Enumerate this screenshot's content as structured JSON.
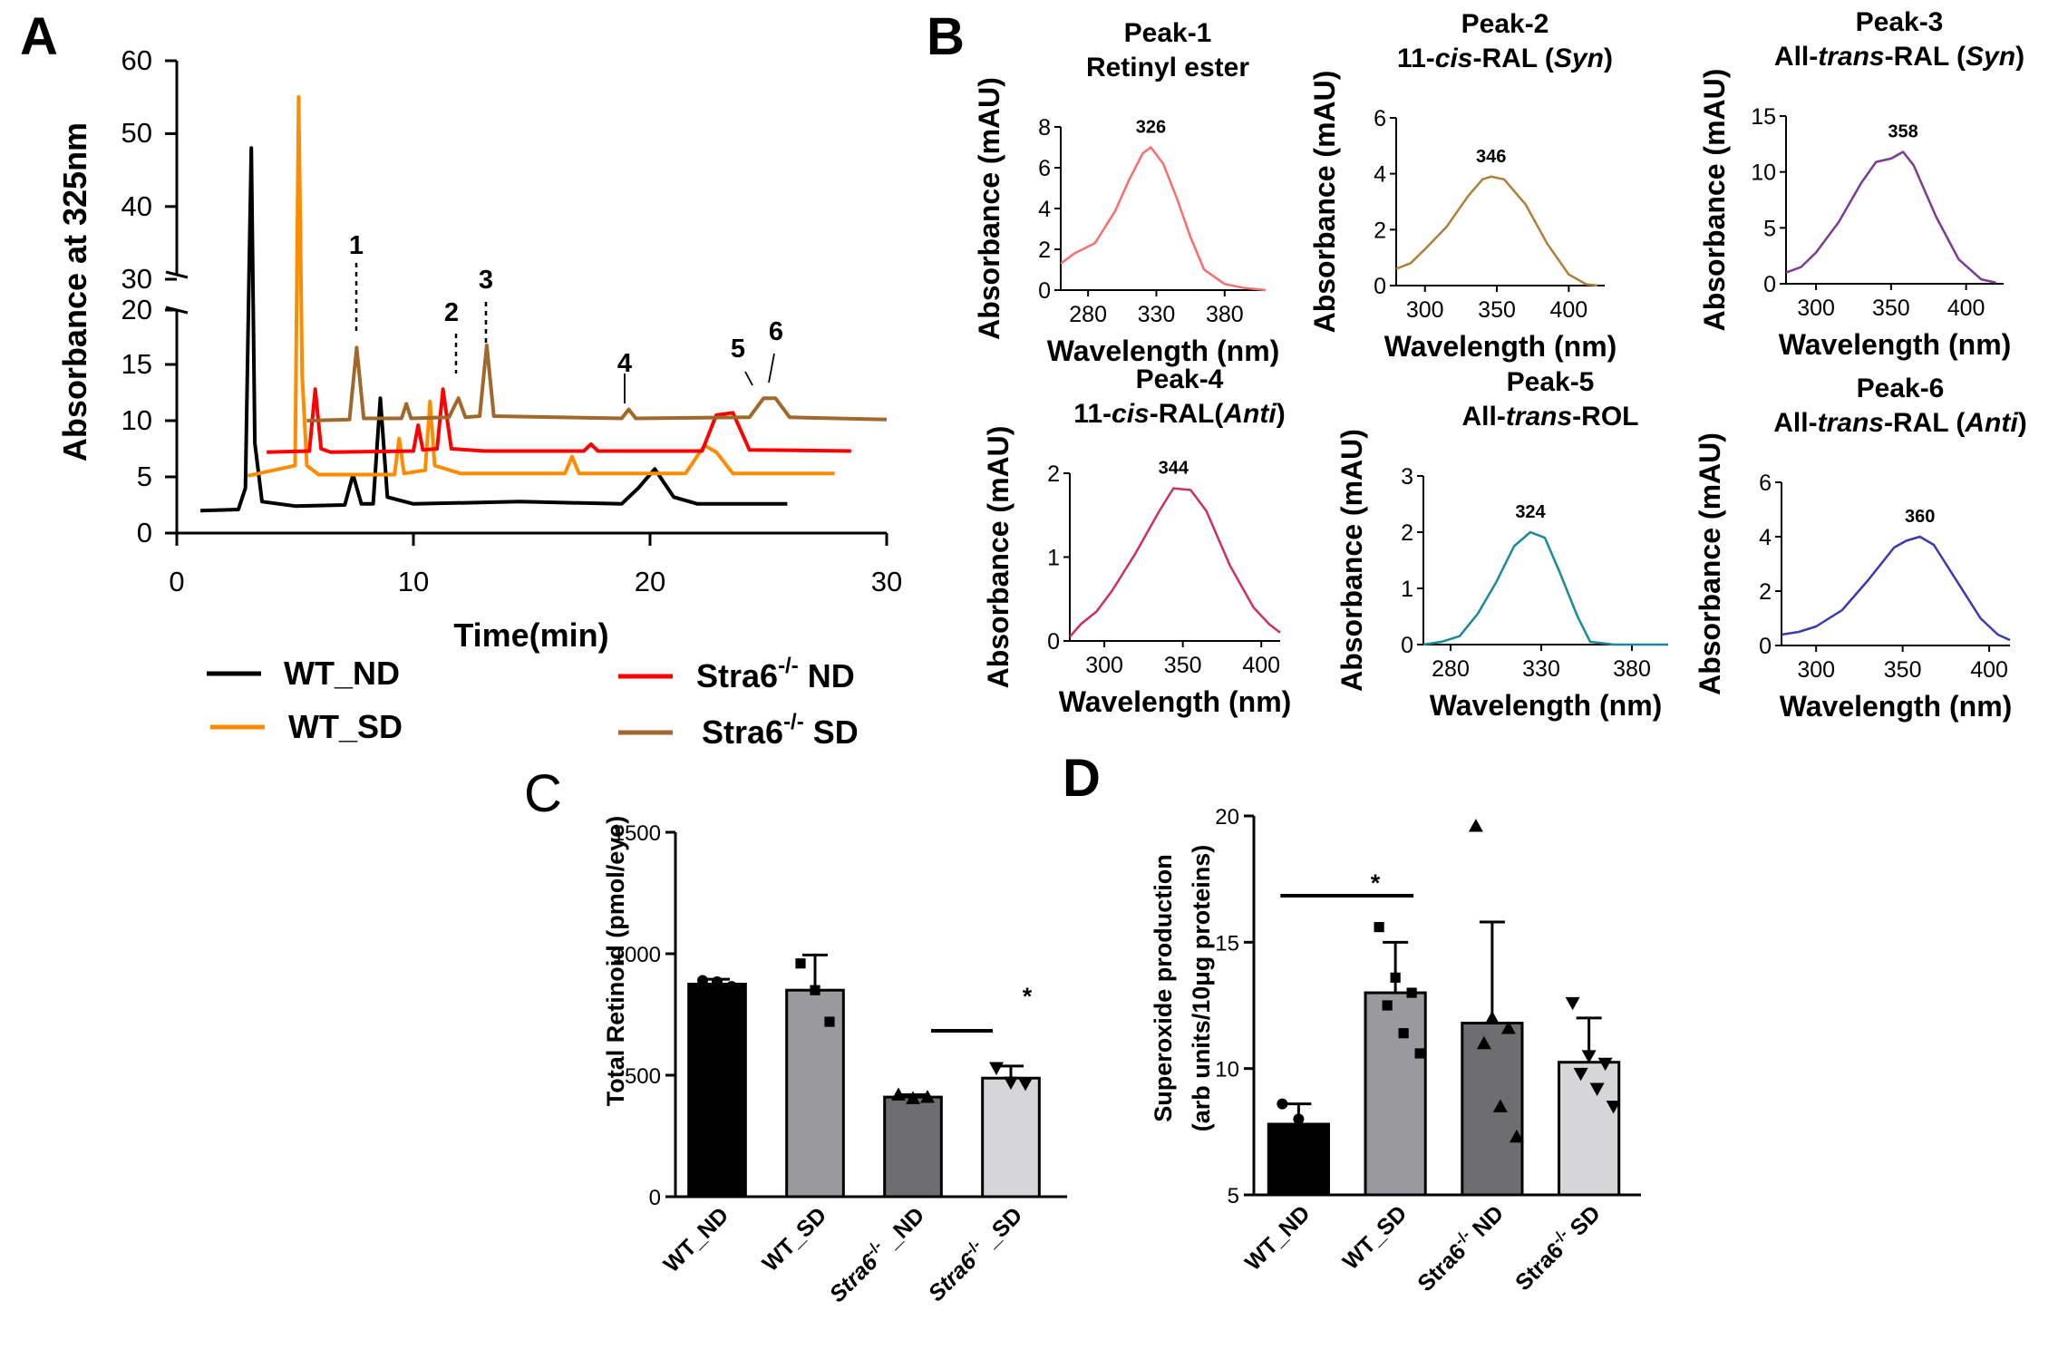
{
  "panels": {
    "A": "A",
    "B": "B",
    "C": "C",
    "D": "D"
  },
  "panel_a": {
    "ylabel": "Absorbance at 325nm",
    "xlabel": "Time(min)",
    "x_ticks": [
      "0",
      "10",
      "20",
      "30"
    ],
    "y_ticks_lower": [
      "0",
      "5",
      "10",
      "15",
      "20"
    ],
    "y_ticks_upper": [
      "30",
      "40",
      "50",
      "60"
    ],
    "peak_labels": [
      "1",
      "2",
      "3",
      "4",
      "5",
      "6"
    ],
    "legend": [
      {
        "name": "WT_ND",
        "color": "#000000"
      },
      {
        "name": "Stra6-/- ND",
        "base": "Stra6",
        "sup": "-/-",
        "rest": " ND",
        "color": "#ff0000"
      },
      {
        "name": "WT_SD",
        "color": "#ff8c00"
      },
      {
        "name": "Stra6-/- SD",
        "base": "Stra6",
        "sup": "-/-",
        "rest": " SD",
        "color": "#a0682a"
      }
    ]
  },
  "panel_b": {
    "xlabel": "Wavelength (nm)",
    "ylabel": "Absorbance (mAU)",
    "spectra": [
      {
        "line1": "Peak-1",
        "line2": "Retinyl ester",
        "max_label": "326",
        "x_ticks": [
          "280",
          "330",
          "380"
        ],
        "y_ticks": [
          "0",
          "2",
          "4",
          "6",
          "8"
        ],
        "color": "#f76e6e"
      },
      {
        "line1": "Peak-2",
        "line2": "11-cis-RAL (Syn)",
        "max_label": "346",
        "x_ticks": [
          "300",
          "350",
          "400"
        ],
        "y_ticks": [
          "0",
          "2",
          "4",
          "6"
        ],
        "color": "#b07f37"
      },
      {
        "line1": "Peak-3",
        "line2": "All-trans-RAL (Syn)",
        "max_label": "358",
        "x_ticks": [
          "300",
          "350",
          "400"
        ],
        "y_ticks": [
          "0",
          "5",
          "10",
          "15"
        ],
        "color": "#7b3b94"
      },
      {
        "line1": "Peak-4",
        "line2": "11-cis-RAL(Anti)",
        "max_label": "344",
        "x_ticks": [
          "300",
          "350",
          "400"
        ],
        "y_ticks": [
          "0",
          "1",
          "2"
        ],
        "color": "#cc2e67"
      },
      {
        "line1": "Peak-5",
        "line2": "All-trans-ROL",
        "max_label": "324",
        "x_ticks": [
          "280",
          "330",
          "380"
        ],
        "y_ticks": [
          "0",
          "1",
          "2",
          "3"
        ],
        "color": "#1a8a9a"
      },
      {
        "line1": "Peak-6",
        "line2": "All-trans-RAL (Anti)",
        "max_label": "360",
        "x_ticks": [
          "300",
          "350",
          "400"
        ],
        "y_ticks": [
          "0",
          "2",
          "4",
          "6"
        ],
        "color": "#3a3ab0"
      }
    ]
  },
  "panel_c": {
    "ylabel": "Total Retinoid (pmol/eye)",
    "y_ticks": [
      "0",
      "500",
      "1000",
      "1500"
    ],
    "sig_label": "*",
    "categories": [
      "WT_ND",
      "WT_SD",
      "Stra6-/- _ND",
      "Stra6-/- _SD"
    ]
  },
  "panel_d": {
    "ylabel_line1": "Superoxide production",
    "ylabel_line2": "(arb units/10μg proteins)",
    "y_ticks": [
      "5",
      "10",
      "15",
      "20"
    ],
    "sig_label": "*",
    "categories": [
      "WT_ND",
      "WT_SD",
      "Stra6-/- ND",
      "Stra6-/- SD"
    ]
  },
  "chart_data": [
    {
      "type": "line",
      "title": "",
      "xlabel": "Time(min)",
      "ylabel": "Absorbance at 325nm",
      "xlim": [
        0,
        30
      ],
      "ylim": [
        0,
        60
      ],
      "axis_break": [
        20,
        30
      ],
      "series": [
        {
          "name": "WT_ND",
          "color": "#000000",
          "x": [
            1,
            2.6,
            2.9,
            3.05,
            3.15,
            3.3,
            3.6,
            5,
            7.1,
            7.45,
            7.8,
            8.3,
            8.6,
            8.9,
            10,
            14.5,
            18.8,
            19.5,
            20.2,
            21,
            22,
            25.8
          ],
          "y": [
            2,
            2.1,
            4,
            30,
            48,
            8,
            2.8,
            2.4,
            2.5,
            5.2,
            2.6,
            2.6,
            12,
            3.2,
            2.6,
            2.8,
            2.6,
            4,
            5.7,
            3.2,
            2.6,
            2.6
          ]
        },
        {
          "name": "WT_SD",
          "color": "#ff8c00",
          "x": [
            3,
            5.0,
            5.15,
            5.3,
            5.5,
            6,
            9.2,
            9.4,
            9.6,
            10.5,
            10.7,
            10.9,
            12,
            16.4,
            16.7,
            17,
            21.5,
            22.3,
            22.8,
            23.5,
            27.8
          ],
          "y": [
            5.1,
            6,
            55,
            14,
            6,
            5.2,
            5.2,
            8.4,
            5.3,
            5.6,
            11.7,
            6,
            5.3,
            5.3,
            6.8,
            5.3,
            5.3,
            7.8,
            7.2,
            5.3,
            5.3
          ]
        },
        {
          "name": "Stra6-/- ND",
          "color": "#ff0000",
          "x": [
            3.8,
            5.6,
            5.85,
            6.1,
            6.5,
            10.0,
            10.2,
            10.4,
            11.0,
            11.25,
            11.6,
            13,
            17.2,
            17.5,
            17.8,
            22.2,
            22.8,
            23.5,
            24.2,
            28.5
          ],
          "y": [
            7.2,
            7.3,
            12.8,
            7.5,
            7.2,
            7.3,
            9.6,
            7.4,
            7.5,
            12.8,
            7.5,
            7.3,
            7.3,
            7.9,
            7.3,
            7.3,
            10.5,
            10.7,
            7.4,
            7.3
          ]
        },
        {
          "name": "Stra6-/- SD",
          "color": "#a0682a",
          "x": [
            5.5,
            7.3,
            7.6,
            7.9,
            9.5,
            9.7,
            9.9,
            11.5,
            11.9,
            12.2,
            12.8,
            13.1,
            13.4,
            18.8,
            19.1,
            19.4,
            24.2,
            24.8,
            25.3,
            25.9,
            30
          ],
          "y": [
            10,
            10.1,
            16.5,
            10.2,
            10.2,
            11.5,
            10.2,
            10.3,
            12,
            10.3,
            10.4,
            16.7,
            10.4,
            10.2,
            11,
            10.2,
            10.3,
            12,
            12,
            10.3,
            10.1
          ]
        }
      ]
    },
    {
      "type": "line",
      "title": "Peak-1 Retinyl ester",
      "xlabel": "Wavelength (nm)",
      "ylabel": "Absorbance (mAU)",
      "xlim": [
        260,
        410
      ],
      "ylim": [
        0,
        8
      ],
      "series": [
        {
          "name": "Peak-1",
          "x": [
            260,
            270,
            285,
            300,
            310,
            320,
            326,
            335,
            345,
            355,
            365,
            380,
            395,
            410
          ],
          "y": [
            1.3,
            1.8,
            2.3,
            3.9,
            5.4,
            6.7,
            7.0,
            6.2,
            4.5,
            2.6,
            1.0,
            0.3,
            0.1,
            0.0
          ]
        }
      ]
    },
    {
      "type": "line",
      "title": "Peak-2 11-cis-RAL (Syn)",
      "xlabel": "Wavelength (nm)",
      "ylabel": "Absorbance (mAU)",
      "xlim": [
        280,
        425
      ],
      "ylim": [
        0,
        6
      ],
      "series": [
        {
          "name": "Peak-2",
          "x": [
            280,
            290,
            300,
            315,
            330,
            340,
            346,
            355,
            370,
            385,
            400,
            412,
            420
          ],
          "y": [
            0.6,
            0.8,
            1.3,
            2.1,
            3.2,
            3.8,
            3.9,
            3.8,
            2.9,
            1.5,
            0.4,
            0.05,
            0.0
          ]
        }
      ]
    },
    {
      "type": "line",
      "title": "Peak-3 All-trans-RAL (Syn)",
      "xlabel": "Wavelength (nm)",
      "ylabel": "Absorbance (mAU)",
      "xlim": [
        280,
        425
      ],
      "ylim": [
        0,
        15
      ],
      "series": [
        {
          "name": "Peak-3",
          "x": [
            280,
            290,
            300,
            315,
            330,
            340,
            350,
            358,
            365,
            380,
            395,
            410,
            420
          ],
          "y": [
            1.0,
            1.5,
            2.8,
            5.5,
            9.0,
            10.9,
            11.2,
            11.8,
            10.6,
            6.0,
            2.2,
            0.4,
            0.1
          ]
        }
      ]
    },
    {
      "type": "line",
      "title": "Peak-4 11-cis-RAL(Anti)",
      "xlabel": "Wavelength (nm)",
      "ylabel": "Absorbance (mAU)",
      "xlim": [
        278,
        412
      ],
      "ylim": [
        0,
        2
      ],
      "series": [
        {
          "name": "Peak-4",
          "x": [
            278,
            285,
            295,
            305,
            320,
            335,
            344,
            355,
            365,
            380,
            395,
            405,
            412
          ],
          "y": [
            0.05,
            0.2,
            0.35,
            0.6,
            1.05,
            1.55,
            1.82,
            1.8,
            1.55,
            0.9,
            0.4,
            0.2,
            0.1
          ]
        }
      ]
    },
    {
      "type": "line",
      "title": "Peak-5 All-trans-ROL",
      "xlabel": "Wavelength (nm)",
      "ylabel": "Absorbance (mAU)",
      "xlim": [
        265,
        400
      ],
      "ylim": [
        0,
        3
      ],
      "series": [
        {
          "name": "Peak-5",
          "x": [
            265,
            275,
            285,
            295,
            305,
            315,
            324,
            332,
            340,
            350,
            357,
            370,
            385,
            400
          ],
          "y": [
            0.0,
            0.05,
            0.15,
            0.55,
            1.1,
            1.75,
            2.0,
            1.9,
            1.3,
            0.5,
            0.05,
            0.0,
            0.0,
            0.0
          ]
        }
      ]
    },
    {
      "type": "line",
      "title": "Peak-6 All-trans-RAL (Anti)",
      "xlabel": "Wavelength (nm)",
      "ylabel": "Absorbance (mAU)",
      "xlim": [
        280,
        412
      ],
      "ylim": [
        0,
        6
      ],
      "series": [
        {
          "name": "Peak-6",
          "x": [
            280,
            290,
            300,
            315,
            330,
            345,
            352,
            360,
            368,
            380,
            395,
            405,
            412
          ],
          "y": [
            0.4,
            0.5,
            0.7,
            1.3,
            2.4,
            3.6,
            3.85,
            4.0,
            3.7,
            2.5,
            1.0,
            0.4,
            0.2
          ]
        }
      ]
    },
    {
      "type": "bar",
      "title": "",
      "ylabel": "Total Retinoid (pmol/eye)",
      "ylim": [
        0,
        1500
      ],
      "categories": [
        "WT_ND",
        "WT_SD",
        "Stra6-/- _ND",
        "Stra6-/- _SD"
      ],
      "values": [
        875,
        850,
        410,
        488
      ],
      "errors": [
        20,
        145,
        10,
        50
      ],
      "colors": [
        "#000000",
        "#9a9a9e",
        "#6e6e70",
        "#d6d6d8"
      ],
      "points": [
        [
          890,
          885,
          865
        ],
        [
          960,
          850,
          720
        ],
        [
          420,
          405,
          410
        ],
        [
          530,
          470,
          465
        ]
      ],
      "significance": [
        {
          "between": [
            2,
            3
          ],
          "label": "*"
        }
      ]
    },
    {
      "type": "bar",
      "title": "",
      "ylabel": "Superoxide production (arb units/10μg proteins)",
      "ylim": [
        5,
        20
      ],
      "categories": [
        "WT_ND",
        "WT_SD",
        "Stra6-/- ND",
        "Stra6-/- SD"
      ],
      "values": [
        7.8,
        13.0,
        11.8,
        10.25
      ],
      "errors": [
        0.8,
        2.0,
        4.0,
        1.75
      ],
      "colors": [
        "#000000",
        "#9a9a9e",
        "#6e6e70",
        "#d6d6d8"
      ],
      "points": [
        [
          8.6,
          8.0,
          7.6,
          7.4
        ],
        [
          15.6,
          13.6,
          13.0,
          12.5,
          11.4,
          10.6
        ],
        [
          19.6,
          12.0,
          11.6,
          11.0,
          8.5,
          7.3
        ],
        [
          12.6,
          10.5,
          10.2,
          9.8,
          9.2,
          8.5
        ]
      ],
      "significance": [
        {
          "between": [
            0,
            1
          ],
          "label": "*"
        }
      ]
    }
  ]
}
